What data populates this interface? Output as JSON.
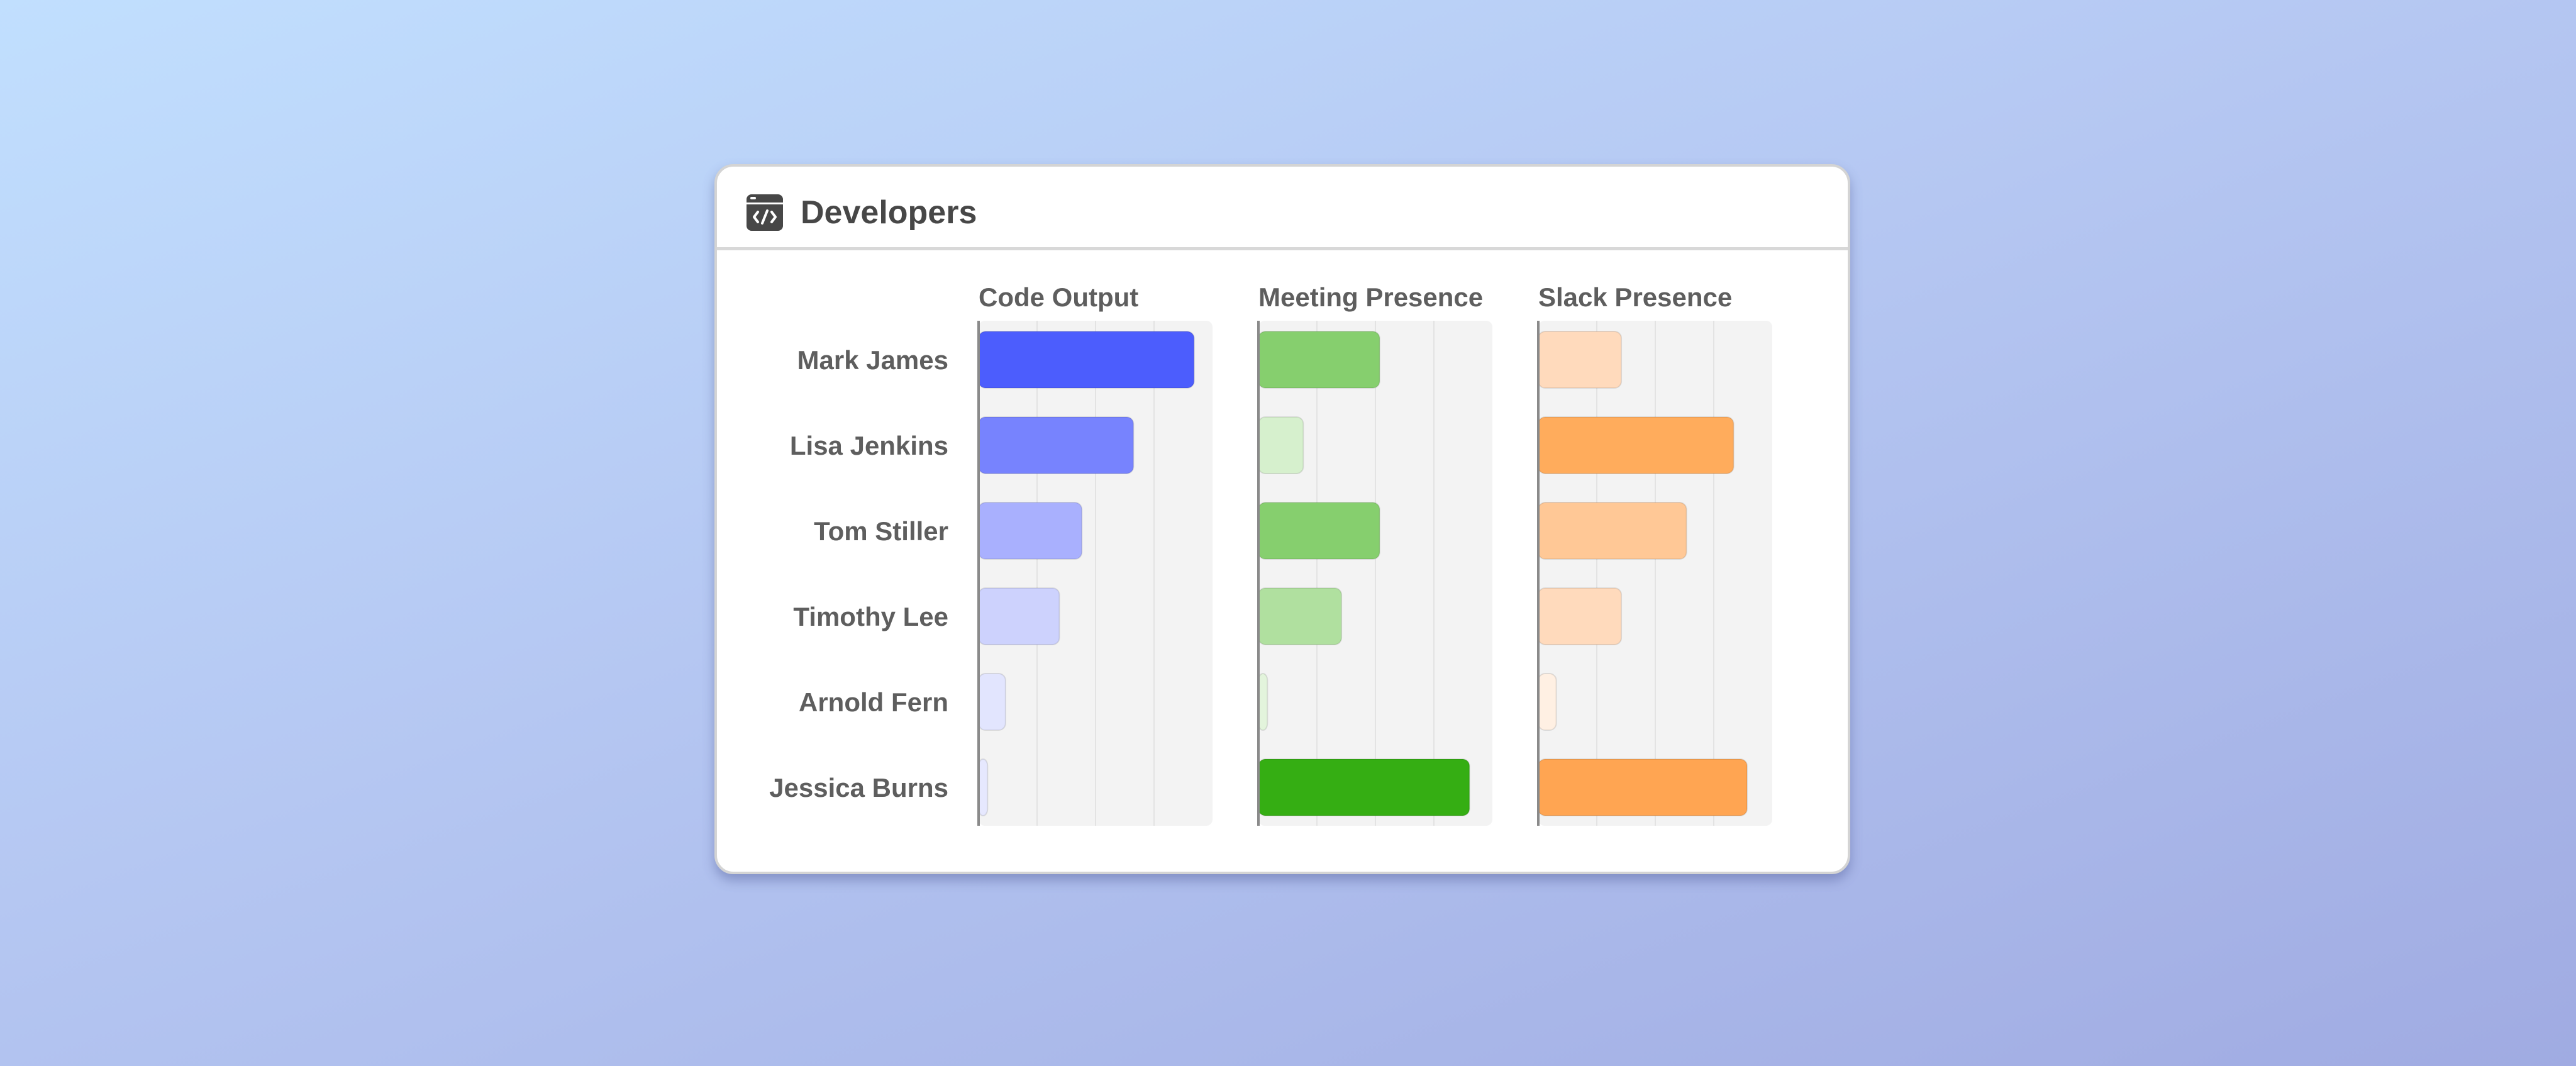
{
  "card": {
    "title": "Developers",
    "icon": "code-window-icon"
  },
  "chart_data": {
    "type": "bar",
    "orientation": "horizontal",
    "categories": [
      "Mark James",
      "Lisa Jenkins",
      "Tom Stiller",
      "Timothy Lee",
      "Arnold Fern",
      "Jessica Burns"
    ],
    "series": [
      {
        "name": "Code Output",
        "values": [
          0.96,
          0.69,
          0.46,
          0.36,
          0.12,
          0.04
        ],
        "colors": [
          "#4c5dfd",
          "#7783fe",
          "#a9b0fe",
          "#cdd2fd",
          "#e2e5fe",
          "#e6e8fe"
        ]
      },
      {
        "name": "Meeting Presence",
        "values": [
          0.54,
          0.2,
          0.54,
          0.37,
          0.04,
          0.94
        ],
        "colors": [
          "#86cf6e",
          "#d6f0cd",
          "#86cf6e",
          "#b0e09f",
          "#e3f4dc",
          "#35ae13"
        ]
      },
      {
        "name": "Slack Presence",
        "values": [
          0.37,
          0.87,
          0.66,
          0.37,
          0.08,
          0.93
        ],
        "colors": [
          "#ffdabc",
          "#ffac5c",
          "#ffc896",
          "#ffdabc",
          "#fff0e3",
          "#ffa552"
        ]
      }
    ],
    "xlim": [
      0,
      1
    ],
    "grid": true,
    "legend": "none"
  }
}
